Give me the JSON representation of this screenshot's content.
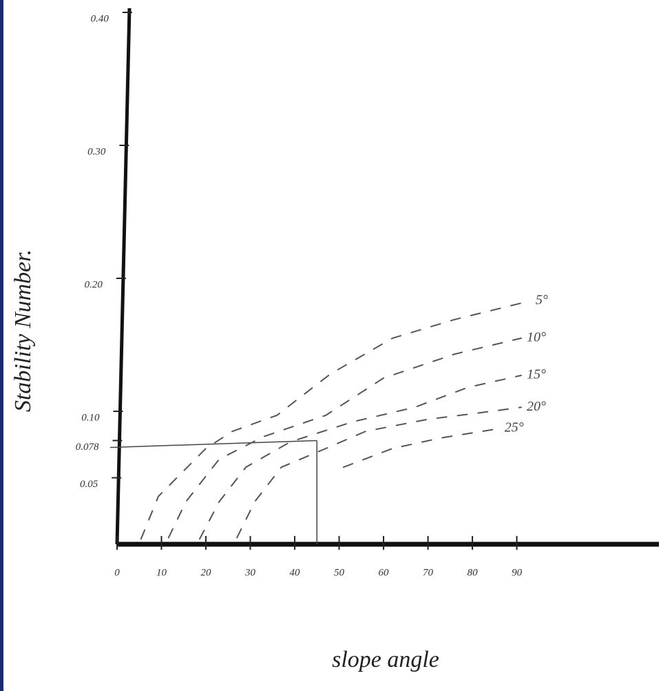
{
  "chart_data": {
    "type": "line",
    "x_label": "slope angle",
    "y_label": "Stability Number.",
    "xlim": [
      0,
      122
    ],
    "ylim": [
      0,
      0.4
    ],
    "xticks": [
      0,
      10,
      20,
      30,
      40,
      50,
      60,
      70,
      80,
      90
    ],
    "yticks": [
      {
        "value": 0.05,
        "label": "0.05"
      },
      {
        "value": 0.078,
        "label": "0.078"
      },
      {
        "value": 0.1,
        "label": "0.10"
      },
      {
        "value": 0.2,
        "label": "0.20"
      },
      {
        "value": 0.3,
        "label": "0.30"
      },
      {
        "value": 0.4,
        "label": "0.40"
      }
    ],
    "reference": {
      "x": 45,
      "y": 0.078
    },
    "series": [
      {
        "name": "5°",
        "color": "#555555",
        "x": [
          5.4,
          9.3,
          20,
          26,
          36,
          48,
          62,
          76,
          93
        ],
        "values": [
          0.004,
          0.036,
          0.072,
          0.085,
          0.097,
          0.128,
          0.155,
          0.169,
          0.183
        ]
      },
      {
        "name": "10°",
        "color": "#555555",
        "x": [
          11.6,
          15.5,
          23,
          33,
          47,
          60,
          76,
          91
        ],
        "values": [
          0.005,
          0.032,
          0.064,
          0.081,
          0.097,
          0.125,
          0.143,
          0.155
        ]
      },
      {
        "name": "15°",
        "color": "#555555",
        "x": [
          18.6,
          23,
          29,
          39,
          53,
          67,
          79,
          91
        ],
        "values": [
          0.004,
          0.032,
          0.058,
          0.077,
          0.092,
          0.103,
          0.118,
          0.127
        ]
      },
      {
        "name": "20°",
        "color": "#555555",
        "x": [
          27,
          31,
          37,
          47,
          56,
          70,
          82,
          91
        ],
        "values": [
          0.005,
          0.032,
          0.058,
          0.072,
          0.085,
          0.094,
          0.099,
          0.103
        ]
      },
      {
        "name": "25°",
        "color": "#555555",
        "x": [
          51,
          62,
          73,
          86
        ],
        "values": [
          0.058,
          0.072,
          0.08,
          0.087
        ]
      }
    ]
  }
}
